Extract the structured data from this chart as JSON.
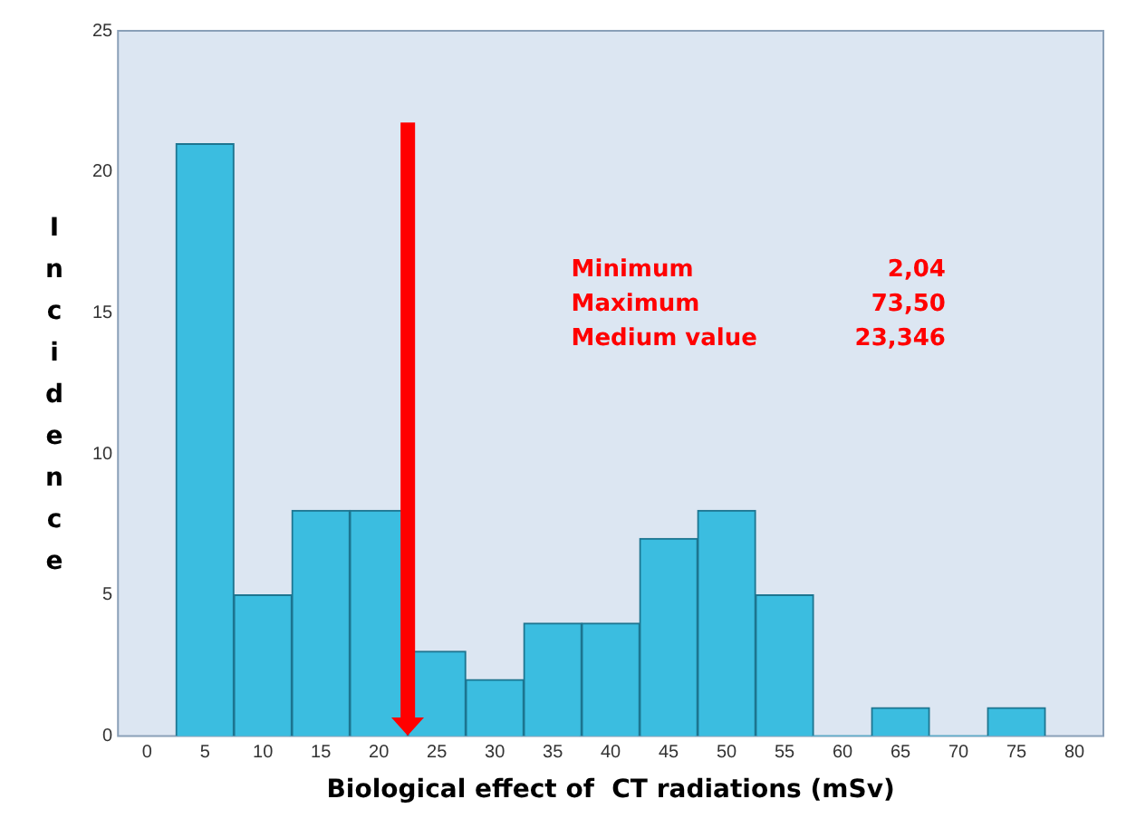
{
  "chart_data": {
    "type": "histogram",
    "xlabel": "Biological effect of  CT radiations (mSv)",
    "ylabel": "Incidence",
    "bins": [
      2.5,
      7.5,
      12.5,
      17.5,
      22.5,
      27.5,
      32.5,
      37.5,
      42.5,
      47.5,
      52.5,
      57.5,
      62.5,
      67.5,
      72.5,
      77.5
    ],
    "values": [
      21,
      5,
      8,
      8,
      3,
      2,
      4,
      4,
      7,
      8,
      5,
      0,
      1,
      0,
      1
    ],
    "color": "#3bbde0",
    "xlim": [
      -2.5,
      82.5
    ],
    "xticks": [
      0,
      5,
      10,
      15,
      20,
      25,
      30,
      35,
      40,
      45,
      50,
      55,
      60,
      65,
      70,
      75,
      80
    ],
    "ylim": [
      0,
      25
    ],
    "yticks": [
      0,
      5,
      10,
      15,
      20,
      25
    ],
    "grid": false,
    "legend": false,
    "ref_lines": [
      {
        "axis": "x",
        "value": 22.5,
        "color": "#ff0000"
      }
    ],
    "annotations": [
      "Minimum 2,04",
      "Maximum 73,50",
      "Medium value 23,346"
    ]
  }
}
